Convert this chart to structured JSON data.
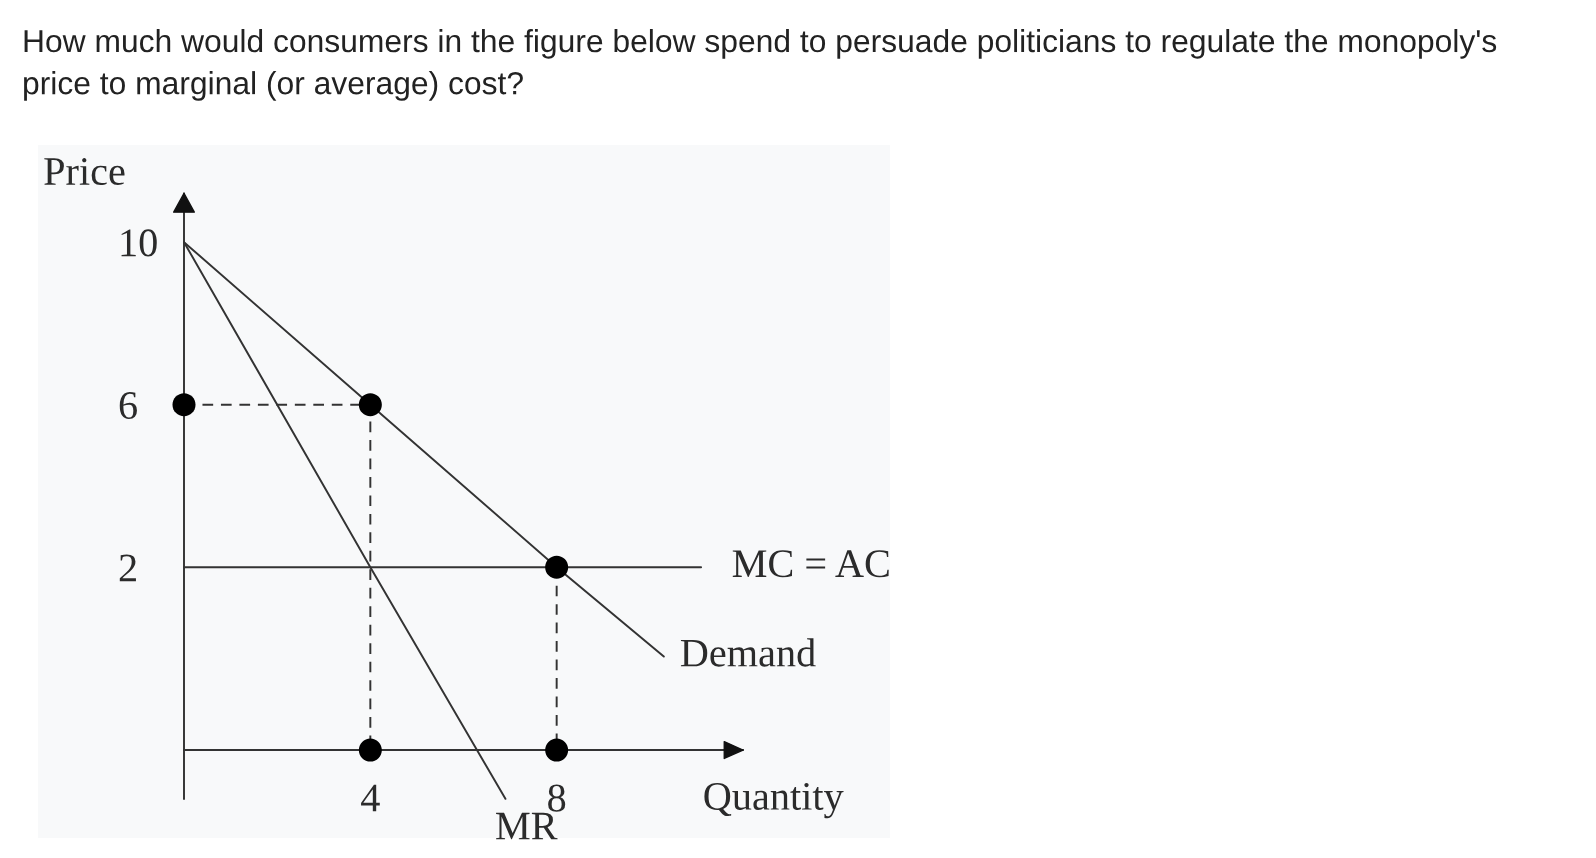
{
  "chart_data": {
    "type": "line",
    "title": "How much would consumers in the figure below spend to persuade politicians to regulate the monopoly's\nprice to marginal (or average) cost?",
    "xlabel": "Quantity",
    "ylabel": "Price",
    "xlim": [
      0,
      12
    ],
    "xticks": [
      4,
      8
    ],
    "ylim": [
      -3.7,
      11.2
    ],
    "yticks": [
      2,
      6,
      10
    ],
    "ref_lines": [
      {
        "axis": "y",
        "value": -2.5,
        "color": "#333333"
      }
    ],
    "series": [
      {
        "name": "Demand",
        "color": "#333333",
        "x": [
          0,
          4,
          8,
          10.3
        ],
        "values": [
          10,
          6,
          2,
          -0.2
        ]
      },
      {
        "name": "MR",
        "color": "#333333",
        "x": [
          0,
          4,
          6.9
        ],
        "values": [
          10,
          2,
          -3.7
        ]
      },
      {
        "name": "MC = AC",
        "color": "#333333",
        "x": [
          0,
          11.1
        ],
        "values": [
          2,
          2
        ]
      },
      {
        "line_style": "dashed",
        "color": "#333333",
        "x": [
          0,
          4,
          4
        ],
        "values": [
          6,
          6,
          -2.5
        ]
      },
      {
        "line_style": "dashed",
        "color": "#333333",
        "x": [
          8,
          8
        ],
        "values": [
          2,
          -2.5
        ]
      },
      {
        "type": "scatter",
        "marker": "circle",
        "color": "#000000",
        "x": [
          0,
          4,
          8,
          4,
          8
        ],
        "values": [
          6,
          6,
          2,
          -2.5,
          -2.5
        ]
      }
    ]
  }
}
